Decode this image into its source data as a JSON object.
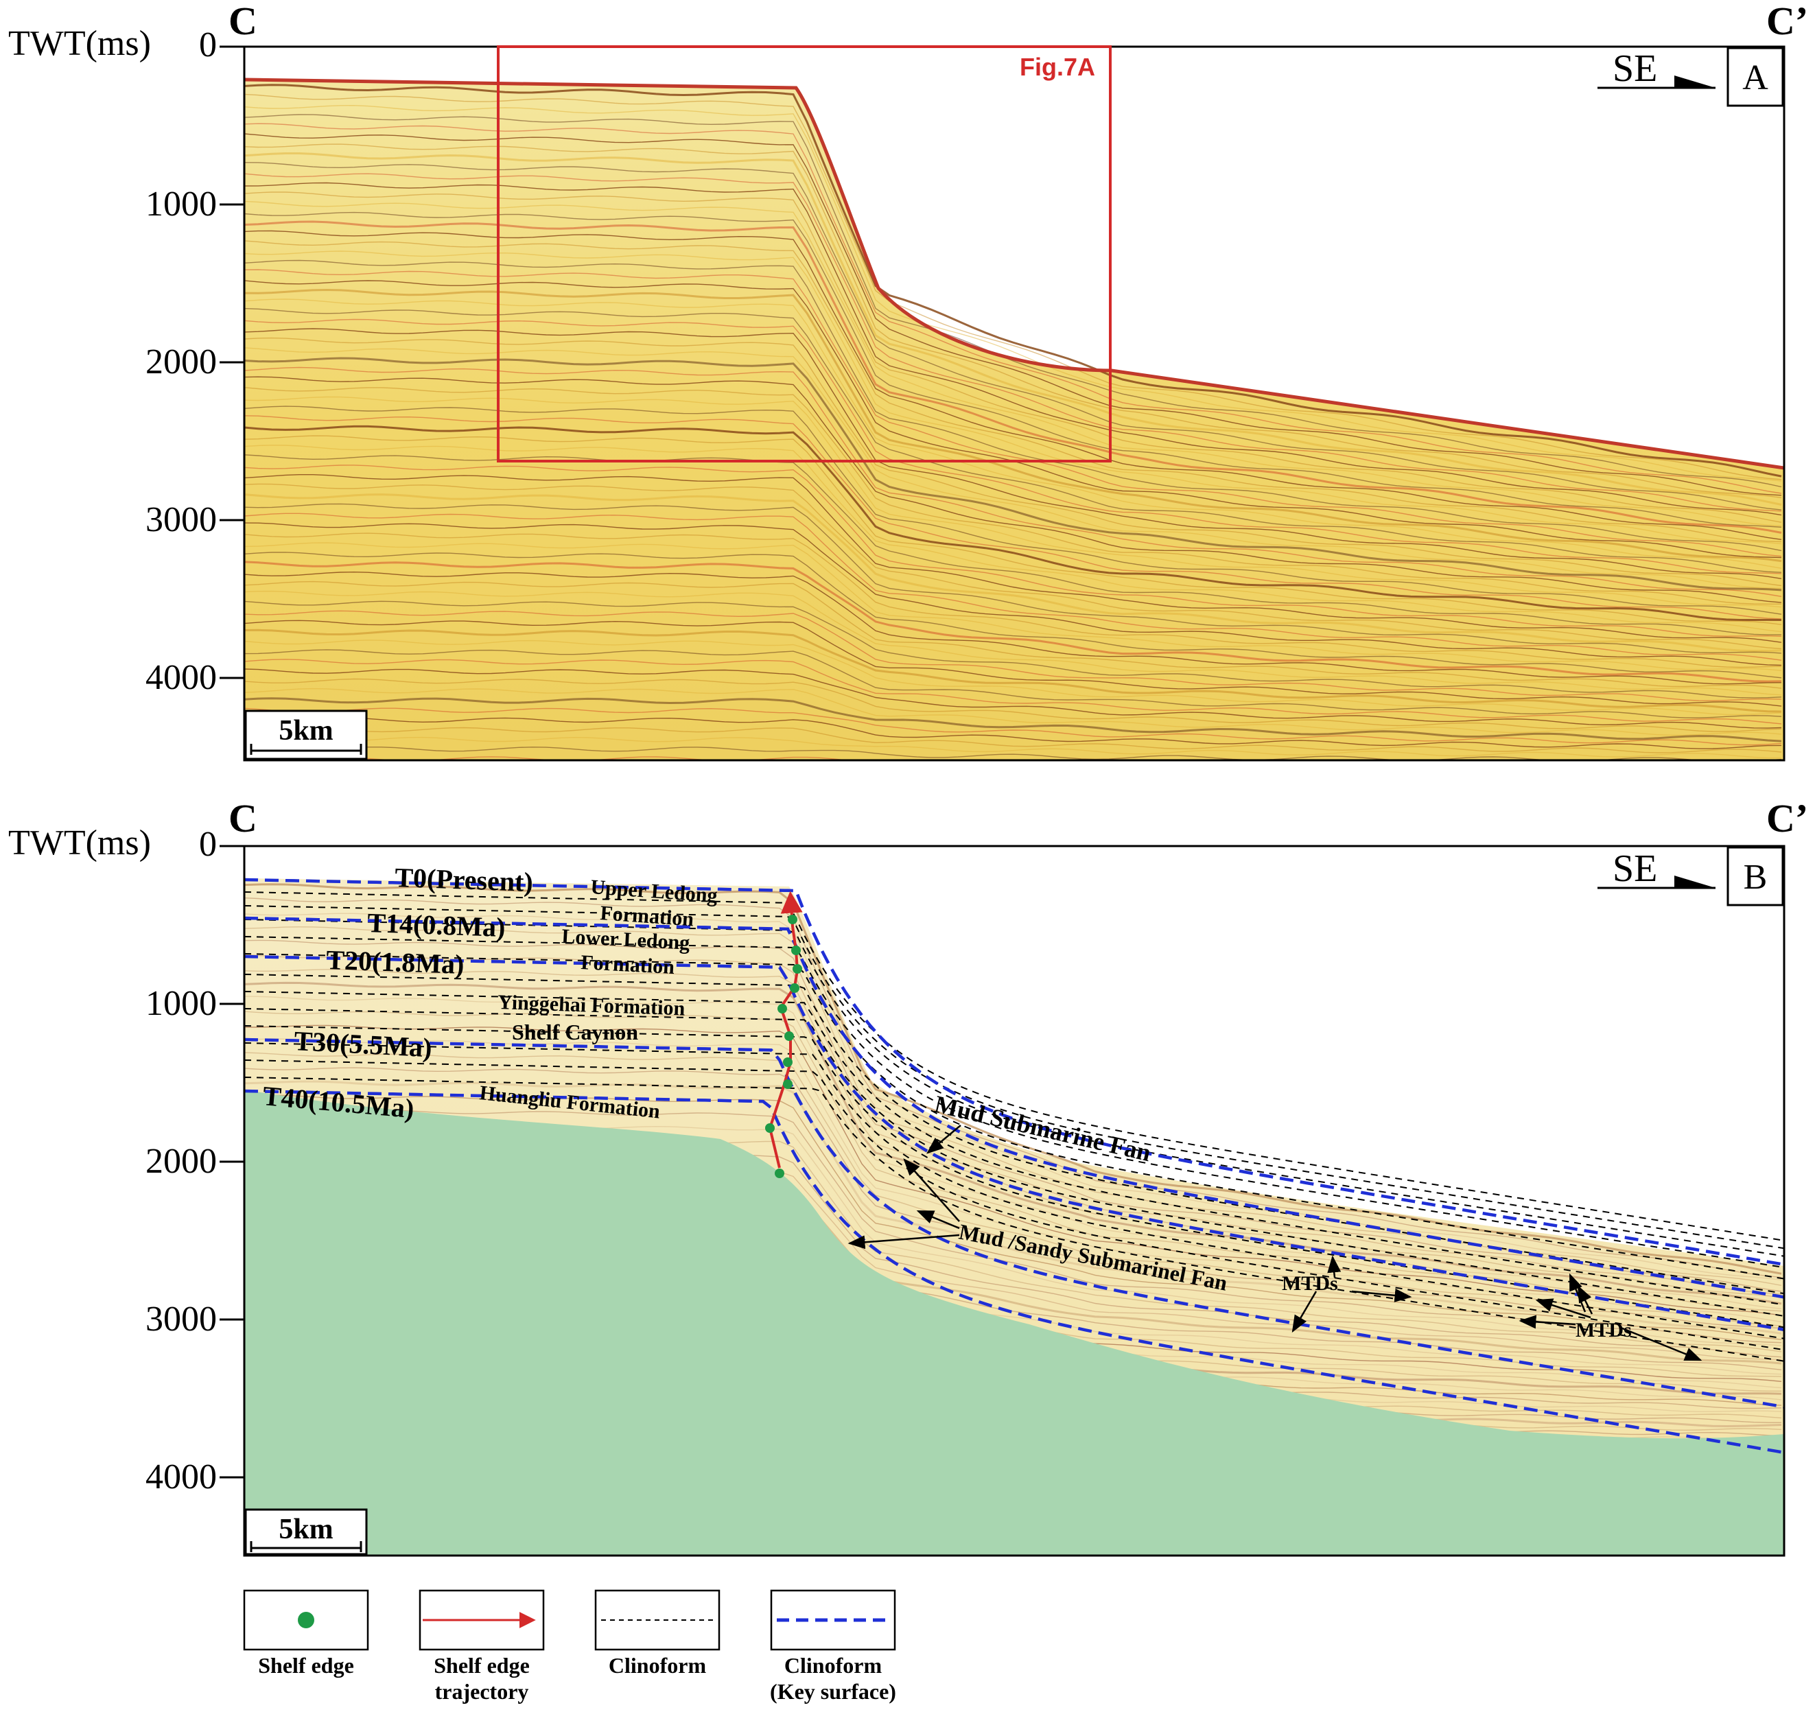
{
  "panelA": {
    "left_label": "C",
    "right_label": "C’",
    "axis_title": "TWT(ms)",
    "ticks": [
      "0",
      "1000",
      "2000",
      "3000",
      "4000"
    ],
    "direction": "SE",
    "panel_letter": "A",
    "inset_label": "Fig.7A",
    "scale_label": "5km",
    "colors": {
      "seismic_background": "#f3df79",
      "reflector": "#8a4a1a",
      "box": "#d42a2a"
    }
  },
  "panelB": {
    "left_label": "C",
    "right_label": "C’",
    "axis_title": "TWT(ms)",
    "ticks": [
      "0",
      "1000",
      "2000",
      "3000",
      "4000"
    ],
    "direction": "SE",
    "panel_letter": "B",
    "scale_label": "5km",
    "horizons": [
      "T0(Present)",
      "T14(0.8Ma)",
      "T20(1.8Ma)",
      "T30(5.5Ma)",
      "T40(10.5Ma)"
    ],
    "formations": {
      "upper_ledong_1": "Upper Ledong",
      "upper_ledong_2": "Formation",
      "lower_ledong_1": "Lower Ledong",
      "lower_ledong_2": "Formation",
      "yinggehai": "Yinggehai Formation",
      "shelf_canyon": "Shelf Caynon",
      "huangliu": "Huangliu Formation"
    },
    "annotations": {
      "mud_fan": "Mud Submarine Fan",
      "sandy_fan": "Mud /Sandy Submarinel Fan",
      "mtds_1": "MTDs",
      "mtds_2": "MTDs"
    },
    "colors": {
      "basement": "#a8d6b0",
      "key_surface": "#1f2fd6",
      "trajectory": "#d42a2a",
      "shelf_edge": "#1e9a46"
    }
  },
  "legend": {
    "items": [
      {
        "label_lines": [
          "Shelf edge"
        ]
      },
      {
        "label_lines": [
          "Shelf edge",
          "trajectory"
        ]
      },
      {
        "label_lines": [
          "Clinoform"
        ]
      },
      {
        "label_lines": [
          "Clinoform",
          "(Key surface)"
        ]
      }
    ]
  }
}
